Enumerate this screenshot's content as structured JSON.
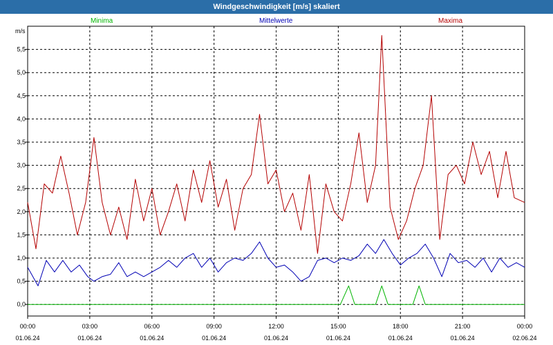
{
  "window": {
    "title": "Windgeschwindigkeit [m/s] skaliert"
  },
  "chart_data": {
    "type": "line",
    "title": "Windgeschwindigkeit [m/s] skaliert",
    "ylabel": "m/s",
    "ylim": [
      -0.25,
      6.0
    ],
    "xlim_hours": [
      0,
      24
    ],
    "yticks": [
      0.0,
      0.5,
      1.0,
      1.5,
      2.0,
      2.5,
      3.0,
      3.5,
      4.0,
      4.5,
      5.0,
      5.5
    ],
    "ytick_labels": [
      "0,0",
      "0,5",
      "1,0",
      "1,5",
      "2,0",
      "2,5",
      "3,0",
      "3,5",
      "4,0",
      "4,5",
      "5,0",
      "5,5"
    ],
    "xticks": [
      {
        "time": "00:00",
        "date": "01.06.24"
      },
      {
        "time": "03:00",
        "date": "01.06.24"
      },
      {
        "time": "06:00",
        "date": "01.06.24"
      },
      {
        "time": "09:00",
        "date": "01.06.24"
      },
      {
        "time": "12:00",
        "date": "01.06.24"
      },
      {
        "time": "15:00",
        "date": "01.06.24"
      },
      {
        "time": "18:00",
        "date": "01.06.24"
      },
      {
        "time": "21:00",
        "date": "01.06.24"
      },
      {
        "time": "00:00",
        "date": "02.06.24"
      }
    ],
    "grid": true,
    "legend_position": "top",
    "series": [
      {
        "name": "Minima",
        "color": "#00b400",
        "x": [
          0,
          15.1,
          15.5,
          15.8,
          16.8,
          17.1,
          17.4,
          18.6,
          18.9,
          19.2,
          24
        ],
        "values": [
          0,
          0,
          0.4,
          0,
          0,
          0.4,
          0,
          0,
          0.4,
          0,
          0
        ]
      },
      {
        "name": "Mittelwerte",
        "color": "#0000b4",
        "x": [
          0,
          0.5,
          0.9,
          1.3,
          1.7,
          2.1,
          2.5,
          2.9,
          3.2,
          3.6,
          4.0,
          4.4,
          4.8,
          5.2,
          5.6,
          6.0,
          6.4,
          6.8,
          7.2,
          7.6,
          8.0,
          8.4,
          8.8,
          9.2,
          9.6,
          10.0,
          10.4,
          10.8,
          11.2,
          11.6,
          12.0,
          12.4,
          12.8,
          13.2,
          13.6,
          14.0,
          14.4,
          14.8,
          15.2,
          15.6,
          16.0,
          16.4,
          16.8,
          17.2,
          17.6,
          18.0,
          18.4,
          18.8,
          19.2,
          19.6,
          20.0,
          20.4,
          20.8,
          21.2,
          21.6,
          22.0,
          22.4,
          22.8,
          23.2,
          23.6,
          24.0
        ],
        "values": [
          0.8,
          0.4,
          0.95,
          0.7,
          0.95,
          0.7,
          0.85,
          0.6,
          0.5,
          0.6,
          0.65,
          0.9,
          0.6,
          0.7,
          0.6,
          0.7,
          0.8,
          0.95,
          0.8,
          1.0,
          1.1,
          0.8,
          1.0,
          0.7,
          0.9,
          1.0,
          0.95,
          1.1,
          1.35,
          1.0,
          0.8,
          0.85,
          0.7,
          0.5,
          0.6,
          0.95,
          1.0,
          0.9,
          1.0,
          0.95,
          1.05,
          1.3,
          1.1,
          1.4,
          1.1,
          0.85,
          1.0,
          1.1,
          1.3,
          1.0,
          0.6,
          1.1,
          0.9,
          0.95,
          0.8,
          1.0,
          0.7,
          1.0,
          0.8,
          0.9,
          0.8
        ]
      },
      {
        "name": "Maxima",
        "color": "#b40000",
        "x": [
          0,
          0.4,
          0.8,
          1.2,
          1.6,
          2.0,
          2.4,
          2.8,
          3.2,
          3.6,
          4.0,
          4.4,
          4.8,
          5.2,
          5.6,
          6.0,
          6.4,
          6.8,
          7.2,
          7.6,
          8.0,
          8.4,
          8.8,
          9.2,
          9.6,
          10.0,
          10.4,
          10.8,
          11.2,
          11.6,
          12.0,
          12.4,
          12.8,
          13.2,
          13.6,
          14.0,
          14.4,
          14.8,
          15.2,
          15.6,
          16.0,
          16.4,
          16.8,
          17.1,
          17.5,
          17.9,
          18.3,
          18.7,
          19.1,
          19.5,
          19.9,
          20.3,
          20.7,
          21.1,
          21.5,
          21.9,
          22.3,
          22.7,
          23.1,
          23.5,
          24.0
        ],
        "values": [
          2.2,
          1.2,
          2.6,
          2.4,
          3.2,
          2.4,
          1.5,
          2.2,
          3.6,
          2.2,
          1.5,
          2.1,
          1.4,
          2.7,
          1.8,
          2.5,
          1.5,
          2.0,
          2.6,
          1.8,
          2.9,
          2.2,
          3.1,
          2.1,
          2.7,
          1.6,
          2.5,
          2.8,
          4.1,
          2.6,
          2.9,
          2.0,
          2.4,
          1.6,
          2.8,
          1.1,
          2.6,
          2.0,
          1.8,
          2.6,
          3.7,
          2.2,
          3.0,
          5.8,
          2.1,
          1.4,
          1.8,
          2.5,
          3.0,
          4.5,
          1.4,
          2.8,
          3.0,
          2.6,
          3.5,
          2.8,
          3.3,
          2.3,
          3.3,
          2.3,
          2.2
        ]
      }
    ]
  }
}
